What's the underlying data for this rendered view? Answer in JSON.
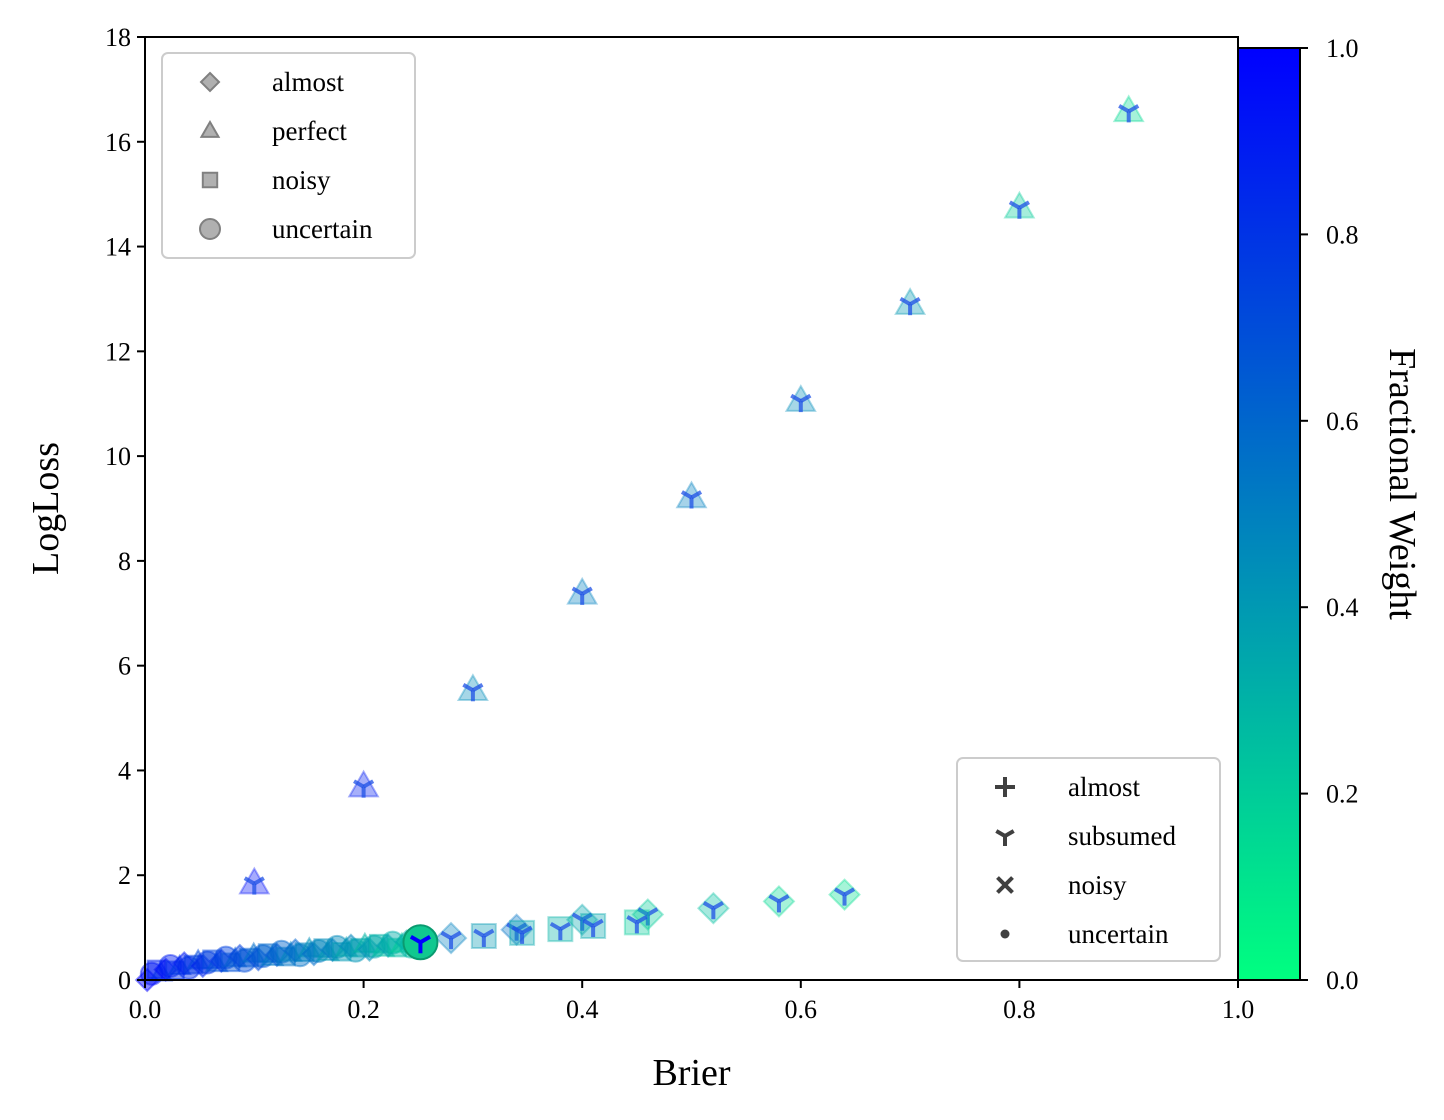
{
  "chart_data": {
    "type": "scatter",
    "xlabel": "Brier",
    "ylabel": "LogLoss",
    "xlim": [
      0.0,
      1.0
    ],
    "ylim": [
      0,
      18
    ],
    "x_ticks": [
      "0.0",
      "0.2",
      "0.4",
      "0.6",
      "0.8",
      "1.0"
    ],
    "y_ticks": [
      "0",
      "2",
      "4",
      "6",
      "8",
      "10",
      "12",
      "14",
      "16",
      "18"
    ],
    "grid": false,
    "colorbar": {
      "label": "Fractional Weight",
      "range": [
        0.0,
        1.0
      ],
      "ticks": [
        "0.0",
        "0.2",
        "0.4",
        "0.6",
        "0.8",
        "1.0"
      ],
      "colormap": "winter_r",
      "color_low": "#00ff80",
      "color_high": "#0000ff"
    },
    "legend_shapes": {
      "placement": "upper-left",
      "entries": [
        {
          "label": "almost",
          "marker": "diamond"
        },
        {
          "label": "perfect",
          "marker": "triangle"
        },
        {
          "label": "noisy",
          "marker": "square"
        },
        {
          "label": "uncertain",
          "marker": "circle"
        }
      ]
    },
    "legend_markers": {
      "placement": "lower-right",
      "entries": [
        {
          "label": "almost",
          "marker": "plus"
        },
        {
          "label": "subsumed",
          "marker": "tri-down"
        },
        {
          "label": "noisy",
          "marker": "x"
        },
        {
          "label": "uncertain",
          "marker": "dot"
        }
      ]
    },
    "series": [
      {
        "name": "perfect",
        "shape": "triangle",
        "points": [
          {
            "x": 0.1,
            "y": 1.84,
            "w": 0.95
          },
          {
            "x": 0.2,
            "y": 3.69,
            "w": 0.9
          },
          {
            "x": 0.3,
            "y": 5.53,
            "w": 0.45
          },
          {
            "x": 0.4,
            "y": 7.37,
            "w": 0.5
          },
          {
            "x": 0.5,
            "y": 9.21,
            "w": 0.5
          },
          {
            "x": 0.6,
            "y": 11.05,
            "w": 0.45
          },
          {
            "x": 0.7,
            "y": 12.9,
            "w": 0.4
          },
          {
            "x": 0.8,
            "y": 14.74,
            "w": 0.2
          },
          {
            "x": 0.9,
            "y": 16.58,
            "w": 0.15
          }
        ]
      },
      {
        "name": "almost",
        "shape": "diamond",
        "points": [
          {
            "x": 0.28,
            "y": 0.8,
            "w": 0.5
          },
          {
            "x": 0.34,
            "y": 0.96,
            "w": 0.55
          },
          {
            "x": 0.4,
            "y": 1.15,
            "w": 0.35
          },
          {
            "x": 0.46,
            "y": 1.25,
            "w": 0.2
          },
          {
            "x": 0.52,
            "y": 1.37,
            "w": 0.25
          },
          {
            "x": 0.58,
            "y": 1.5,
            "w": 0.15
          },
          {
            "x": 0.64,
            "y": 1.63,
            "w": 0.12
          }
        ]
      },
      {
        "name": "noisy",
        "shape": "square",
        "points": [
          {
            "x": 0.31,
            "y": 0.84,
            "w": 0.4
          },
          {
            "x": 0.345,
            "y": 0.9,
            "w": 0.35
          },
          {
            "x": 0.38,
            "y": 0.97,
            "w": 0.3
          },
          {
            "x": 0.41,
            "y": 1.03,
            "w": 0.35
          },
          {
            "x": 0.45,
            "y": 1.1,
            "w": 0.2
          }
        ]
      },
      {
        "name": "uncertain",
        "shape": "circle",
        "points": [
          {
            "x": 0.252,
            "y": 0.72,
            "w": 0.2
          }
        ]
      }
    ]
  }
}
